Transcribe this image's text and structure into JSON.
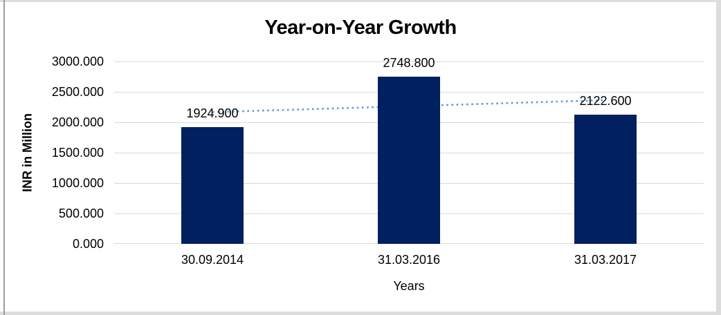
{
  "chart_data": {
    "type": "bar",
    "title": "Year-on-Year Growth",
    "xlabel": "Years",
    "ylabel": "INR in Million",
    "categories": [
      "30.09.2014",
      "31.03.2016",
      "31.03.2017"
    ],
    "values": [
      1924.9,
      2748.8,
      2122.6
    ],
    "data_labels": [
      "1924.900",
      "2748.800",
      "2122.600"
    ],
    "ylim": [
      0,
      3000
    ],
    "y_tick_labels": [
      "0.000",
      "500.000",
      "1000.000",
      "1500.000",
      "2000.000",
      "2500.000",
      "3000.000"
    ],
    "grid": true,
    "legend": false,
    "bar_color": "#002060",
    "gridline_color": "#d9d9d9",
    "text_color": "#000000",
    "trendline": {
      "type": "linear",
      "style": "dotted",
      "color": "#5b9bd5",
      "start_value": 2166.6,
      "end_value": 2364.3
    }
  }
}
